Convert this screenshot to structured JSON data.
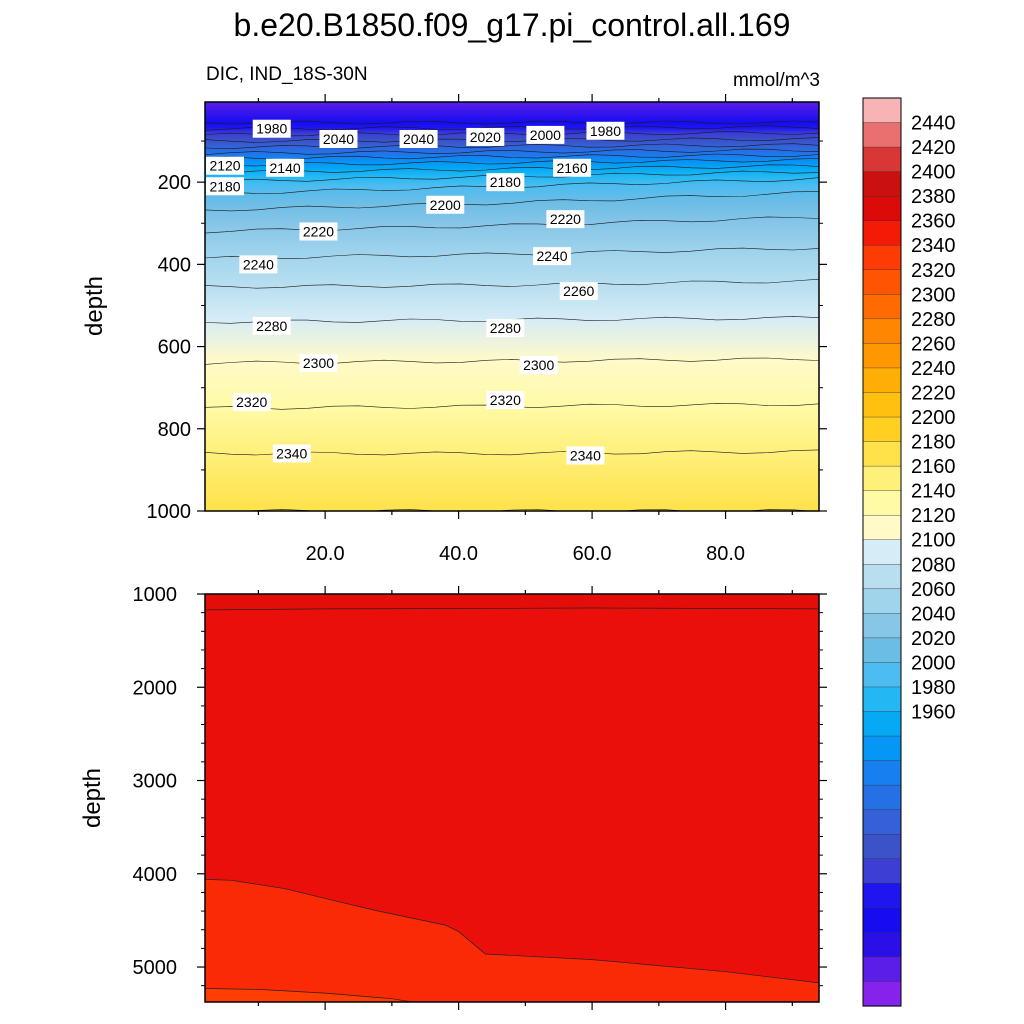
{
  "title": "b.e20.B1850.f09_g17.pi_control.all.169",
  "subtitle_left": "DIC, IND_18S-30N",
  "subtitle_right": "mmol/m^3",
  "chart_data": [
    {
      "type": "heatmap",
      "panel": "upper",
      "variable": "DIC",
      "region": "IND_18S-30N",
      "units": "mmol/m^3",
      "ylabel": "depth",
      "xlabel": "",
      "x_ticks": [
        "20.0",
        "40.0",
        "60.0",
        "80.0"
      ],
      "x_tick_values": [
        20,
        40,
        60,
        80
      ],
      "xlim": [
        2,
        94
      ],
      "y_ticks": [
        "200",
        "400",
        "600",
        "800",
        "1000"
      ],
      "y_tick_values": [
        200,
        400,
        600,
        800,
        1000
      ],
      "ylim": [
        5,
        1000
      ],
      "y_reversed": true,
      "isoline_depths": [
        {
          "level": 1980,
          "depth": [
            55,
            55,
            55
          ]
        },
        {
          "level": 2000,
          "depth": [
            70,
            68,
            66
          ]
        },
        {
          "level": 2020,
          "depth": [
            85,
            82,
            80
          ]
        },
        {
          "level": 2040,
          "depth": [
            100,
            98,
            95
          ]
        },
        {
          "level": 2060,
          "depth": [
            115,
            112,
            110
          ]
        },
        {
          "level": 2080,
          "depth": [
            130,
            126,
            122
          ]
        },
        {
          "level": 2100,
          "depth": [
            142,
            138,
            134
          ]
        },
        {
          "level": 2120,
          "depth": [
            158,
            152,
            146
          ]
        },
        {
          "level": 2140,
          "depth": [
            176,
            168,
            160
          ]
        },
        {
          "level": 2160,
          "depth": [
            198,
            186,
            174
          ]
        },
        {
          "level": 2180,
          "depth": [
            228,
            210,
            192
          ]
        },
        {
          "level": 2200,
          "depth": [
            268,
            250,
            225
          ]
        },
        {
          "level": 2220,
          "depth": [
            320,
            305,
            285
          ]
        },
        {
          "level": 2240,
          "depth": [
            385,
            375,
            360
          ]
        },
        {
          "level": 2260,
          "depth": [
            455,
            450,
            440
          ]
        },
        {
          "level": 2280,
          "depth": [
            540,
            535,
            530
          ]
        },
        {
          "level": 2300,
          "depth": [
            640,
            635,
            630
          ]
        },
        {
          "level": 2320,
          "depth": [
            750,
            745,
            740
          ]
        },
        {
          "level": 2340,
          "depth": [
            860,
            860,
            855
          ]
        },
        {
          "level": 2360,
          "depth": [
            1000,
            1000,
            1000
          ]
        }
      ],
      "contour_labels": [
        {
          "text": "1980",
          "x": 12,
          "depth": 70
        },
        {
          "text": "2040",
          "x": 22,
          "depth": 95
        },
        {
          "text": "2040",
          "x": 34,
          "depth": 95
        },
        {
          "text": "2020",
          "x": 44,
          "depth": 90
        },
        {
          "text": "2000",
          "x": 53,
          "depth": 85
        },
        {
          "text": "1980",
          "x": 62,
          "depth": 75
        },
        {
          "text": "2120",
          "x": 5,
          "depth": 160
        },
        {
          "text": "2140",
          "x": 14,
          "depth": 165
        },
        {
          "text": "2160",
          "x": 57,
          "depth": 165
        },
        {
          "text": "2180",
          "x": 5,
          "depth": 210
        },
        {
          "text": "2180",
          "x": 47,
          "depth": 200
        },
        {
          "text": "2200",
          "x": 38,
          "depth": 255
        },
        {
          "text": "2220",
          "x": 56,
          "depth": 290
        },
        {
          "text": "2220",
          "x": 19,
          "depth": 320
        },
        {
          "text": "2240",
          "x": 54,
          "depth": 380
        },
        {
          "text": "2240",
          "x": 10,
          "depth": 400
        },
        {
          "text": "2260",
          "x": 58,
          "depth": 465
        },
        {
          "text": "2280",
          "x": 12,
          "depth": 550
        },
        {
          "text": "2280",
          "x": 47,
          "depth": 555
        },
        {
          "text": "2300",
          "x": 19,
          "depth": 640
        },
        {
          "text": "2300",
          "x": 52,
          "depth": 645
        },
        {
          "text": "2320",
          "x": 9,
          "depth": 735
        },
        {
          "text": "2320",
          "x": 47,
          "depth": 730
        },
        {
          "text": "2340",
          "x": 15,
          "depth": 860
        },
        {
          "text": "2340",
          "x": 59,
          "depth": 865
        }
      ]
    },
    {
      "type": "heatmap",
      "panel": "lower",
      "variable": "DIC",
      "units": "mmol/m^3",
      "ylabel": "depth",
      "xlabel": "",
      "xlim": [
        2,
        94
      ],
      "y_ticks": [
        "1000",
        "2000",
        "3000",
        "4000",
        "5000"
      ],
      "y_tick_values": [
        1000,
        2000,
        3000,
        4000,
        5000
      ],
      "ylim": [
        1000,
        5375
      ],
      "y_reversed": true,
      "isolines": [
        {
          "level": 2380,
          "x": [
            2,
            20,
            40,
            60,
            80,
            94
          ],
          "depth": [
            1170,
            1160,
            1155,
            1150,
            1155,
            1160
          ]
        },
        {
          "level": 2360,
          "x": [
            2,
            6,
            14,
            22,
            28,
            38,
            40,
            44,
            60,
            80,
            94
          ],
          "depth": [
            4060,
            4070,
            4160,
            4300,
            4400,
            4550,
            4620,
            4860,
            4920,
            5050,
            5170
          ]
        },
        {
          "level": 2340,
          "x": [
            2,
            10,
            20,
            30,
            33
          ],
          "depth": [
            5230,
            5240,
            5280,
            5340,
            5375
          ]
        }
      ],
      "fill_levels": [
        2360,
        2380,
        2400
      ]
    }
  ],
  "colorbar": {
    "labels": [
      "2440",
      "2420",
      "2400",
      "2380",
      "2360",
      "2340",
      "2320",
      "2300",
      "2280",
      "2260",
      "2240",
      "2220",
      "2200",
      "2180",
      "2160",
      "2140",
      "2120",
      "2100",
      "2080",
      "2060",
      "2040",
      "2020",
      "2000",
      "1980",
      "1960"
    ],
    "colors_top_to_bottom": [
      "#f8b4b4",
      "#ea7070",
      "#d93636",
      "#cb1010",
      "#dd0a0a",
      "#f41a05",
      "#fd3b04",
      "#ff5503",
      "#ff6b02",
      "#ff8600",
      "#ff9800",
      "#ffae06",
      "#ffc010",
      "#ffd022",
      "#ffe14a",
      "#fff07a",
      "#fffaa6",
      "#fffac8",
      "#d6ecf6",
      "#b8def0",
      "#a0d4ed",
      "#88c6e8",
      "#6cbde6",
      "#4dbcf0",
      "#23b8f3",
      "#06aaf4",
      "#0596f6",
      "#177fef",
      "#2670e6",
      "#3561d8",
      "#3b52c8",
      "#3b3fd4",
      "#1f15ef",
      "#150df0",
      "#2a10e6",
      "#5a1ee8",
      "#8722ec"
    ]
  }
}
